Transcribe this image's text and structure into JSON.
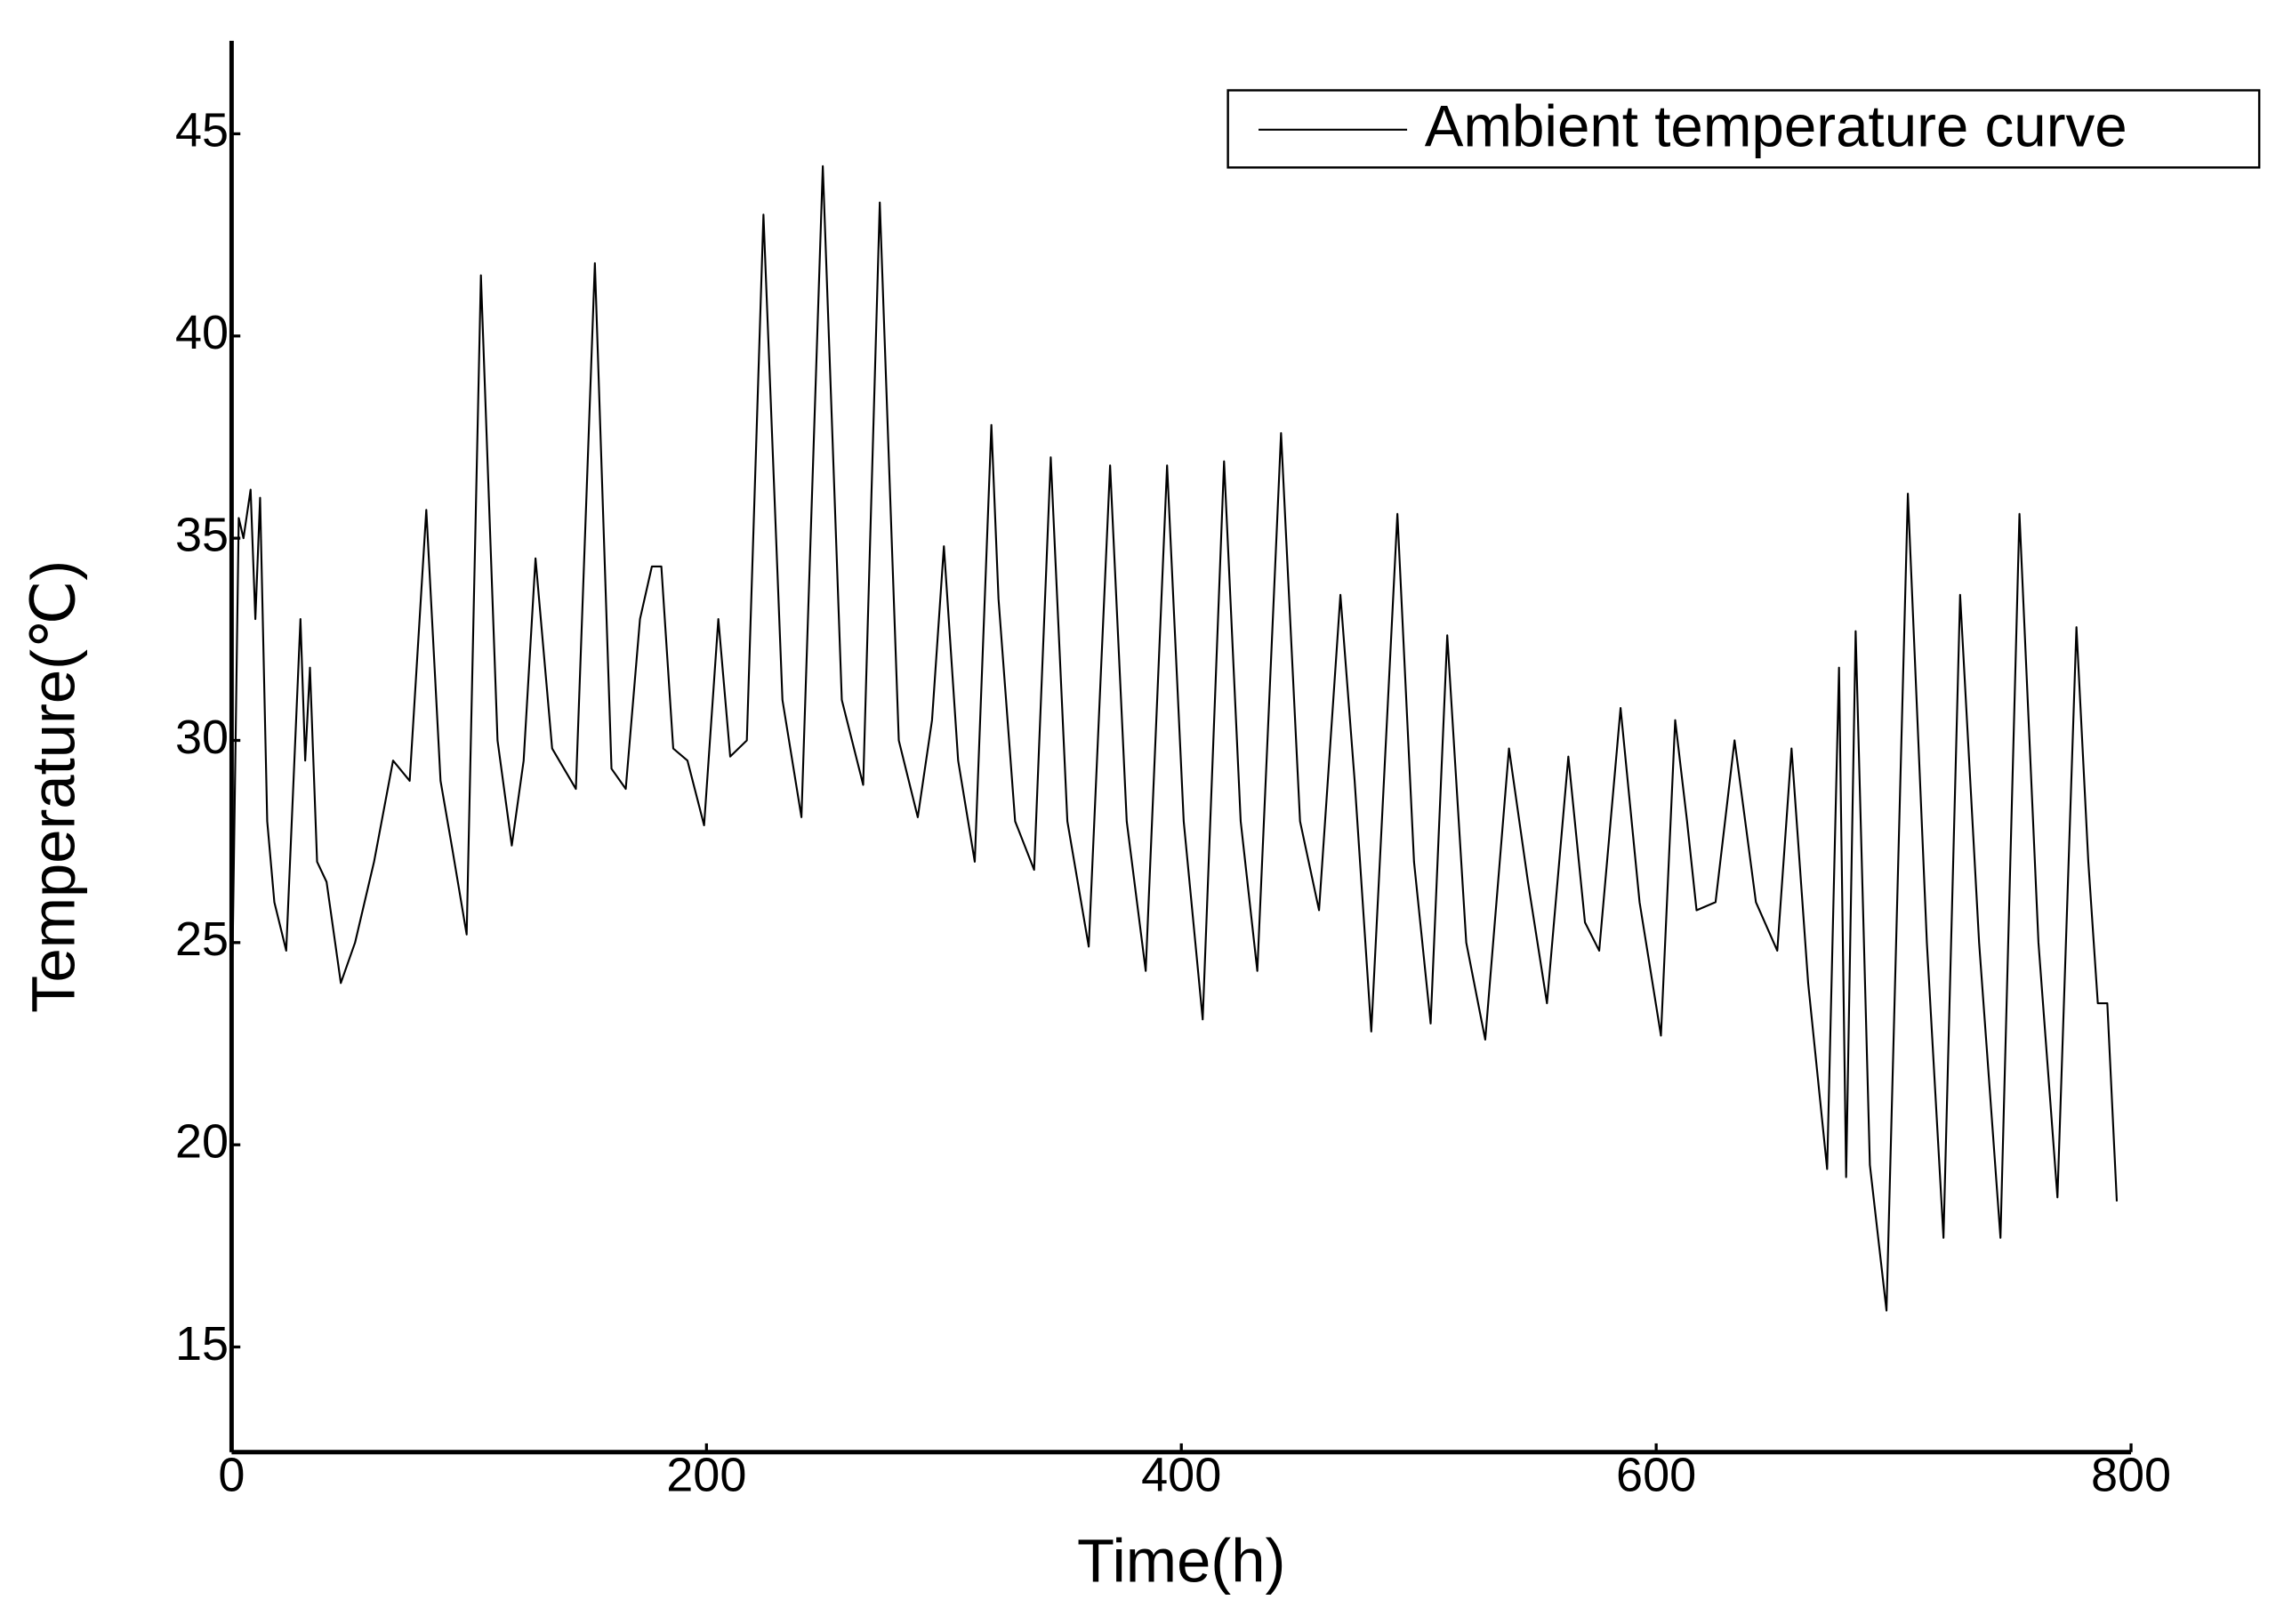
{
  "chart_data": {
    "type": "line",
    "xlabel": "Time(h)",
    "ylabel": "Temperature(℃)",
    "x": [
      0,
      3,
      5,
      8,
      10,
      12,
      15,
      18,
      23,
      29,
      31,
      33,
      36,
      40,
      46,
      52,
      60,
      68,
      75,
      82,
      88,
      93,
      99,
      105,
      112,
      118,
      123,
      128,
      135,
      145,
      153,
      160,
      166,
      172,
      177,
      181,
      186,
      192,
      199,
      205,
      210,
      217,
      224,
      232,
      240,
      249,
      257,
      266,
      273,
      281,
      289,
      295,
      300,
      306,
      313,
      320,
      323,
      330,
      338,
      345,
      352,
      361,
      370,
      377,
      385,
      394,
      401,
      409,
      418,
      425,
      432,
      442,
      450,
      458,
      467,
      473,
      480,
      491,
      498,
      505,
      512,
      520,
      528,
      538,
      546,
      554,
      563,
      570,
      576,
      585,
      593,
      602,
      608,
      613,
      617,
      625,
      633,
      642,
      651,
      657,
      664,
      672,
      677,
      680,
      684,
      690,
      697,
      706,
      714,
      721,
      728,
      736,
      745,
      753,
      761,
      769,
      777,
      782,
      786,
      790,
      794
    ],
    "series": [
      {
        "name": "Ambient temperature curve",
        "color": "#000000",
        "values": [
          23,
          35.5,
          35,
          36.2,
          33,
          36,
          28,
          26,
          24.8,
          33,
          29.5,
          31.8,
          27,
          26.5,
          24,
          25,
          27,
          29.5,
          29,
          35.7,
          29,
          27.3,
          25.2,
          41.5,
          30,
          27.4,
          29.5,
          34.5,
          29.8,
          28.8,
          41.8,
          29.3,
          28.8,
          33,
          34.3,
          34.3,
          29.8,
          29.5,
          27.9,
          33,
          29.6,
          30,
          43,
          31,
          28.1,
          44.2,
          31,
          28.9,
          43.3,
          30,
          28.1,
          30.5,
          34.8,
          29.5,
          27,
          37.8,
          33.5,
          28,
          26.8,
          37,
          28,
          24.9,
          36.8,
          28,
          24.3,
          36.8,
          28,
          23.1,
          36.9,
          28,
          24.3,
          37.6,
          28,
          25.8,
          33.6,
          29,
          22.8,
          35.6,
          27,
          23,
          32.6,
          25,
          22.6,
          29.8,
          26.5,
          23.5,
          29.6,
          25.5,
          24.8,
          30.8,
          26,
          22.7,
          30.5,
          28,
          25.8,
          26,
          30,
          26,
          24.8,
          29.8,
          24,
          19.4,
          31.8,
          19.2,
          32.7,
          19.5,
          15.9,
          36.1,
          25,
          17.7,
          33.6,
          25,
          17.7,
          35.6,
          25,
          18.7,
          32.8,
          27,
          23.5,
          23.5,
          18.6
        ]
      }
    ],
    "xlim": [
      0,
      800
    ],
    "xticks": [
      0,
      200,
      400,
      600,
      800
    ],
    "ylim": [
      12.4,
      47.3
    ],
    "yticks": [
      15,
      20,
      25,
      30,
      35,
      40,
      45
    ],
    "grid": false,
    "legend": "upper right"
  }
}
